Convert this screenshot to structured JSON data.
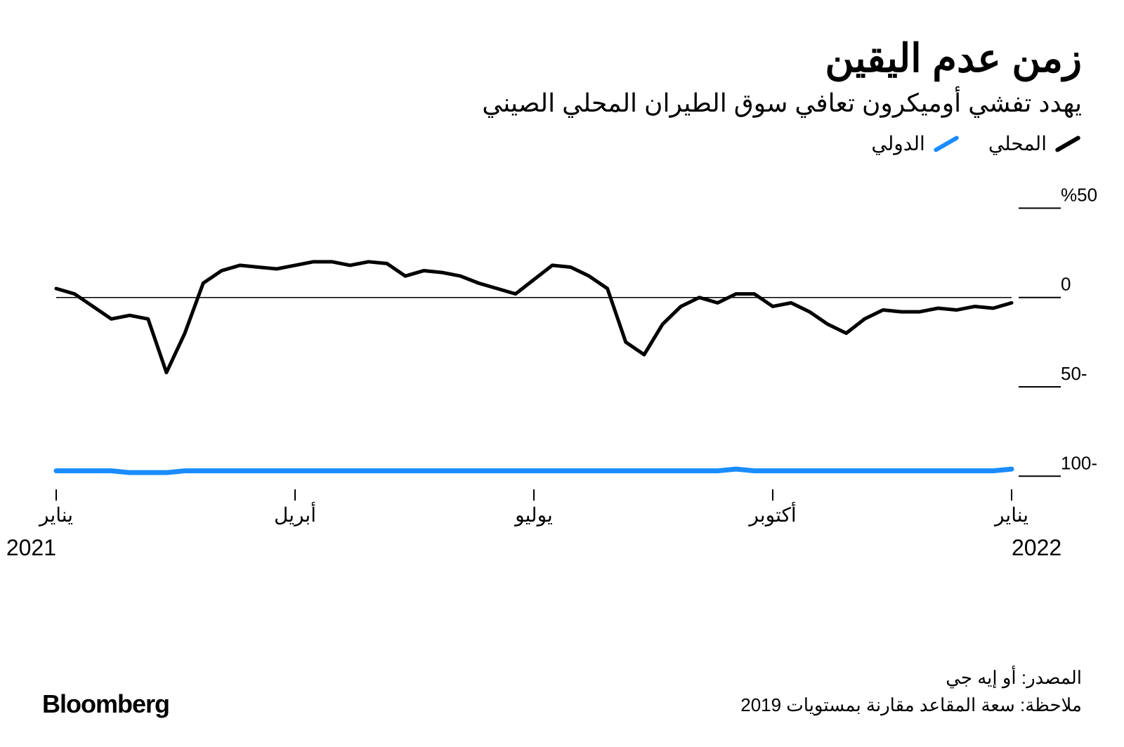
{
  "title": "زمن عدم اليقين",
  "subtitle": "يهدد تفشي أوميكرون تعافي سوق الطيران المحلي الصيني",
  "legend": {
    "domestic": {
      "label": "المحلي",
      "color": "#000000"
    },
    "international": {
      "label": "الدولي",
      "color": "#1a8cff"
    }
  },
  "chart": {
    "type": "line",
    "background_color": "#ffffff",
    "grid_color": "#000000",
    "text_color": "#000000",
    "y": {
      "min": -105,
      "max": 60,
      "ticks": [
        50,
        0,
        -50,
        -100
      ],
      "tick_labels": [
        "%50",
        "0",
        "-50",
        "-100"
      ],
      "tick_fontsize": 26,
      "tick_mark_width": 60
    },
    "x": {
      "labels": [
        "يناير",
        "أبريل",
        "يوليو",
        "أكتوبر",
        "يناير"
      ],
      "positions": [
        0,
        0.25,
        0.5,
        0.75,
        1.0
      ],
      "year_labels": [
        "2021",
        "2022"
      ],
      "year_positions": [
        0,
        1.0
      ],
      "fontsize": 28
    },
    "zero_line": true,
    "series": {
      "domestic": {
        "color": "#000000",
        "stroke_width": 5,
        "data": [
          5,
          2,
          -5,
          -12,
          -10,
          -12,
          -42,
          -20,
          8,
          15,
          18,
          17,
          16,
          18,
          20,
          20,
          18,
          20,
          19,
          12,
          15,
          14,
          12,
          8,
          5,
          2,
          10,
          18,
          17,
          12,
          5,
          -25,
          -32,
          -15,
          -5,
          0,
          -3,
          2,
          2,
          -5,
          -3,
          -8,
          -15,
          -20,
          -12,
          -7,
          -8,
          -8,
          -6,
          -7,
          -5,
          -6,
          -3
        ]
      },
      "international": {
        "color": "#1a8cff",
        "stroke_width": 7,
        "data": [
          -97,
          -97,
          -97,
          -97,
          -98,
          -98,
          -98,
          -97,
          -97,
          -97,
          -97,
          -97,
          -97,
          -97,
          -97,
          -97,
          -97,
          -97,
          -97,
          -97,
          -97,
          -97,
          -97,
          -97,
          -97,
          -97,
          -97,
          -97,
          -97,
          -97,
          -97,
          -97,
          -97,
          -97,
          -97,
          -97,
          -97,
          -96,
          -97,
          -97,
          -97,
          -97,
          -97,
          -97,
          -97,
          -97,
          -97,
          -97,
          -97,
          -97,
          -97,
          -97,
          -96
        ]
      }
    }
  },
  "footer": {
    "source": "المصدر: أو إيه جي",
    "note": "ملاحظة: سعة المقاعد مقارنة بمستويات 2019"
  },
  "brand": "Bloomberg"
}
